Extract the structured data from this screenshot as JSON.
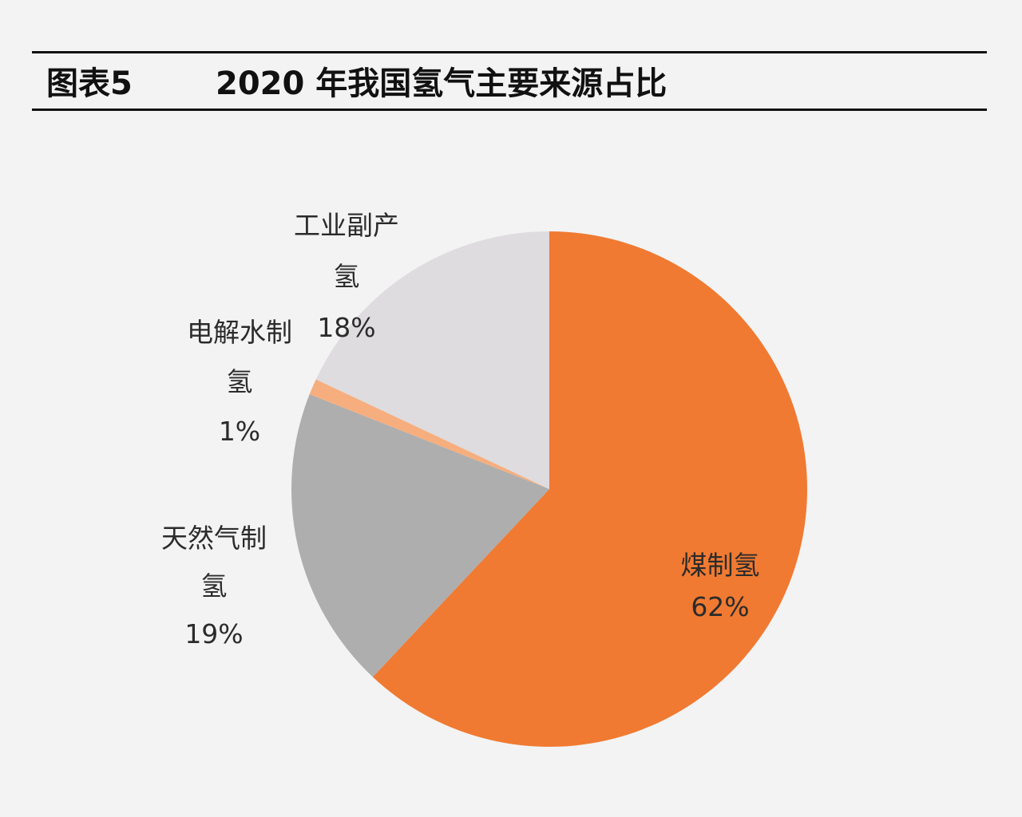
{
  "header": {
    "figure_label": "图表5",
    "title": "2020 年我国氢气主要来源占比"
  },
  "chart_data": {
    "type": "pie",
    "title": "2020 年我国氢气主要来源占比",
    "start_angle": "12 o'clock",
    "direction": "clockwise",
    "slices": [
      {
        "label_lines": [
          "煤制氢",
          "62%"
        ],
        "value": 62,
        "color": "#f07a32"
      },
      {
        "label_lines": [
          "天然气制",
          "氢",
          "19%"
        ],
        "value": 19,
        "color": "#aeaeae"
      },
      {
        "label_lines": [
          "电解水制",
          "氢",
          "1%"
        ],
        "value": 1,
        "color": "#f6ae7e"
      },
      {
        "label_lines": [
          "工业副产",
          "氢",
          "18%"
        ],
        "value": 18,
        "color": "#dedcde"
      }
    ]
  }
}
